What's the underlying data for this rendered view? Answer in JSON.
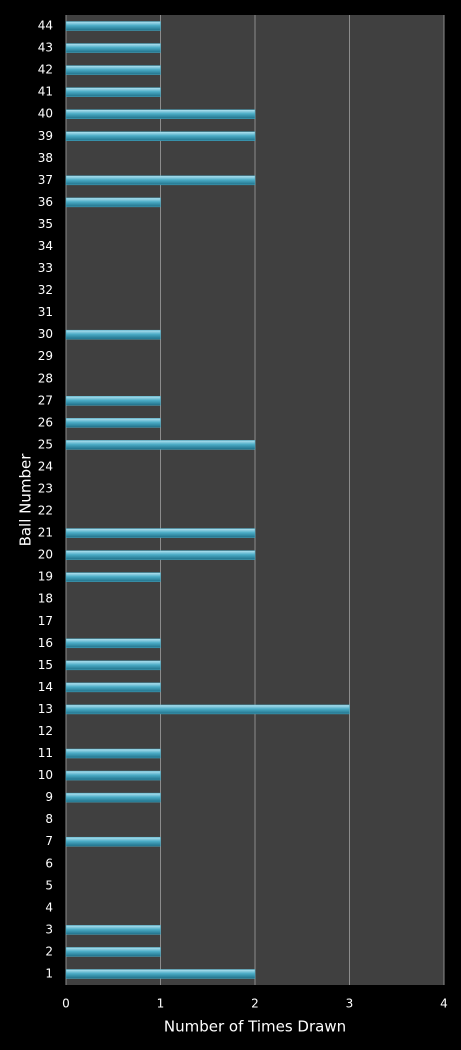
{
  "chart_data": {
    "type": "barh",
    "x_label": "Number of Times Drawn",
    "y_label": "Ball Number",
    "categories": [
      "1",
      "2",
      "3",
      "4",
      "5",
      "6",
      "7",
      "8",
      "9",
      "10",
      "11",
      "12",
      "13",
      "14",
      "15",
      "16",
      "17",
      "18",
      "19",
      "20",
      "21",
      "22",
      "23",
      "24",
      "25",
      "26",
      "27",
      "28",
      "29",
      "30",
      "31",
      "32",
      "33",
      "34",
      "35",
      "36",
      "37",
      "38",
      "39",
      "40",
      "41",
      "42",
      "43",
      "44"
    ],
    "values": [
      2,
      1,
      1,
      0,
      0,
      0,
      1,
      0,
      1,
      1,
      1,
      0,
      3,
      1,
      1,
      1,
      0,
      0,
      1,
      2,
      2,
      0,
      0,
      0,
      2,
      1,
      1,
      0,
      0,
      1,
      0,
      0,
      0,
      0,
      0,
      1,
      2,
      0,
      2,
      2,
      1,
      1,
      1,
      1
    ],
    "color": "#4bacc6",
    "xlim": [
      0,
      4
    ],
    "xticks": [
      0,
      1,
      2,
      3,
      4
    ],
    "grid": true
  }
}
